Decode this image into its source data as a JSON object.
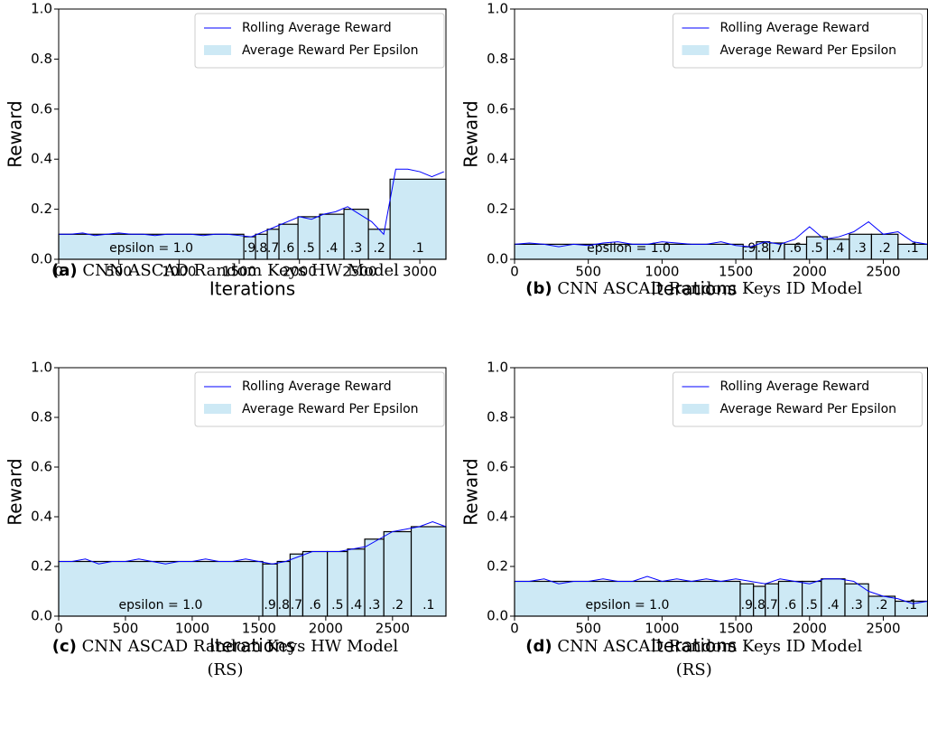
{
  "chart_data": [
    {
      "type": "line",
      "caption_label": "(a)",
      "caption": [
        "CNN ASCAD Random Keys HW Model"
      ],
      "xlabel": "Iterations",
      "ylabel": "Reward",
      "xlim": [
        0,
        3217
      ],
      "ylim": [
        0,
        1
      ],
      "xticks": [
        0,
        500,
        1000,
        1500,
        2000,
        2500,
        3000
      ],
      "yticks": [
        {
          "value": 0,
          "label": "0.0"
        },
        0.2,
        0.4,
        0.6,
        0.8,
        {
          "value": 1,
          "label": "1.0"
        }
      ],
      "series": [
        {
          "name": "Rolling Average Reward",
          "color": "#0000ff",
          "x": [
            0,
            100,
            200,
            300,
            400,
            500,
            600,
            700,
            800,
            900,
            1000,
            1100,
            1200,
            1300,
            1400,
            1500,
            1600,
            1700,
            1800,
            1900,
            2000,
            2100,
            2200,
            2300,
            2400,
            2500,
            2600,
            2700,
            2800,
            2900,
            3000,
            3100,
            3200
          ],
          "values": [
            0.1,
            0.1,
            0.105,
            0.095,
            0.1,
            0.105,
            0.1,
            0.1,
            0.095,
            0.1,
            0.1,
            0.1,
            0.095,
            0.1,
            0.1,
            0.095,
            0.09,
            0.11,
            0.13,
            0.15,
            0.17,
            0.16,
            0.18,
            0.19,
            0.21,
            0.18,
            0.15,
            0.1,
            0.36,
            0.36,
            0.35,
            0.33,
            0.35
          ]
        }
      ],
      "bars": {
        "name": "Average Reward Per Epsilon",
        "color": "#cde9f5",
        "bins": [
          0,
          1538,
          1635,
          1733,
          1830,
          1988,
          2168,
          2370,
          2573,
          2753,
          3217
        ],
        "values": [
          0.1,
          0.09,
          0.1,
          0.12,
          0.14,
          0.17,
          0.18,
          0.2,
          0.12,
          0.32
        ],
        "labels": [
          "epsilon = 1.0",
          ".9",
          ".8",
          ".7",
          ".6",
          ".5",
          ".4",
          ".3",
          ".2",
          ".1"
        ]
      }
    },
    {
      "type": "line",
      "caption_label": "(b)",
      "caption": [
        "CNN ASCAD Random Keys ID Model"
      ],
      "xlabel": "Iterations",
      "ylabel": "Reward",
      "xlim": [
        0,
        2800
      ],
      "ylim": [
        0,
        1
      ],
      "xticks": [
        0,
        500,
        1000,
        1500,
        2000,
        2500
      ],
      "yticks": [
        {
          "value": 0,
          "label": "0.0"
        },
        0.2,
        0.4,
        0.6,
        0.8,
        {
          "value": 1,
          "label": "1.0"
        }
      ],
      "series": [
        {
          "name": "Rolling Average Reward",
          "color": "#0000ff",
          "x": [
            0,
            100,
            200,
            300,
            400,
            500,
            600,
            700,
            800,
            900,
            1000,
            1100,
            1200,
            1300,
            1400,
            1500,
            1600,
            1700,
            1800,
            1900,
            2000,
            2100,
            2200,
            2300,
            2400,
            2500,
            2600,
            2700,
            2800
          ],
          "values": [
            0.06,
            0.065,
            0.06,
            0.05,
            0.06,
            0.055,
            0.065,
            0.07,
            0.06,
            0.06,
            0.07,
            0.065,
            0.06,
            0.06,
            0.07,
            0.055,
            0.05,
            0.07,
            0.06,
            0.08,
            0.13,
            0.08,
            0.09,
            0.11,
            0.15,
            0.1,
            0.11,
            0.07,
            0.06
          ]
        }
      ],
      "bars": {
        "name": "Average Reward Per Epsilon",
        "color": "#cde9f5",
        "bins": [
          0,
          1550,
          1640,
          1730,
          1830,
          1980,
          2120,
          2270,
          2420,
          2600,
          2800
        ],
        "values": [
          0.06,
          0.05,
          0.07,
          0.065,
          0.06,
          0.09,
          0.08,
          0.1,
          0.1,
          0.06
        ],
        "labels": [
          "epsilon = 1.0",
          ".9",
          ".8",
          ".7",
          ".6",
          ".5",
          ".4",
          ".3",
          ".2",
          ".1"
        ]
      }
    },
    {
      "type": "line",
      "caption_label": "(c)",
      "caption": [
        "CNN ASCAD Random Keys HW Model",
        "(RS)"
      ],
      "xlabel": "Iterations",
      "ylabel": "Reward",
      "xlim": [
        0,
        2900
      ],
      "ylim": [
        0,
        1
      ],
      "xticks": [
        0,
        500,
        1000,
        1500,
        2000,
        2500
      ],
      "yticks": [
        {
          "value": 0,
          "label": "0.0"
        },
        0.2,
        0.4,
        0.6,
        0.8,
        {
          "value": 1,
          "label": "1.0"
        }
      ],
      "series": [
        {
          "name": "Rolling Average Reward",
          "color": "#0000ff",
          "x": [
            0,
            100,
            200,
            300,
            400,
            500,
            600,
            700,
            800,
            900,
            1000,
            1100,
            1200,
            1300,
            1400,
            1500,
            1600,
            1700,
            1800,
            1900,
            2000,
            2100,
            2200,
            2300,
            2400,
            2500,
            2600,
            2700,
            2800,
            2900
          ],
          "values": [
            0.22,
            0.22,
            0.23,
            0.21,
            0.22,
            0.22,
            0.23,
            0.22,
            0.21,
            0.22,
            0.22,
            0.23,
            0.22,
            0.22,
            0.23,
            0.22,
            0.21,
            0.22,
            0.24,
            0.26,
            0.26,
            0.26,
            0.27,
            0.28,
            0.31,
            0.34,
            0.35,
            0.36,
            0.38,
            0.36
          ]
        }
      ],
      "bars": {
        "name": "Average Reward Per Epsilon",
        "color": "#cde9f5",
        "bins": [
          0,
          1528,
          1637,
          1733,
          1828,
          2012,
          2163,
          2292,
          2435,
          2640,
          2900
        ],
        "values": [
          0.22,
          0.21,
          0.22,
          0.25,
          0.26,
          0.26,
          0.27,
          0.31,
          0.34,
          0.36
        ],
        "labels": [
          "epsilon = 1.0",
          ".9",
          ".8",
          ".7",
          ".6",
          ".5",
          ".4",
          ".3",
          ".2",
          ".1"
        ]
      }
    },
    {
      "type": "line",
      "caption_label": "(d)",
      "caption": [
        "CNN ASCAD Random Keys ID Model",
        "(RS)"
      ],
      "xlabel": "Iterations",
      "ylabel": "Reward",
      "xlim": [
        0,
        2800
      ],
      "ylim": [
        0,
        1
      ],
      "xticks": [
        0,
        500,
        1000,
        1500,
        2000,
        2500
      ],
      "yticks": [
        {
          "value": 0,
          "label": "0.0"
        },
        0.2,
        0.4,
        0.6,
        0.8,
        {
          "value": 1,
          "label": "1.0"
        }
      ],
      "series": [
        {
          "name": "Rolling Average Reward",
          "color": "#0000ff",
          "x": [
            0,
            100,
            200,
            300,
            400,
            500,
            600,
            700,
            800,
            900,
            1000,
            1100,
            1200,
            1300,
            1400,
            1500,
            1600,
            1700,
            1800,
            1900,
            2000,
            2100,
            2200,
            2300,
            2400,
            2500,
            2600,
            2700,
            2800
          ],
          "values": [
            0.14,
            0.14,
            0.15,
            0.13,
            0.14,
            0.14,
            0.15,
            0.14,
            0.14,
            0.16,
            0.14,
            0.15,
            0.14,
            0.15,
            0.14,
            0.15,
            0.14,
            0.13,
            0.15,
            0.14,
            0.13,
            0.15,
            0.15,
            0.14,
            0.1,
            0.08,
            0.07,
            0.05,
            0.06
          ]
        }
      ],
      "bars": {
        "name": "Average Reward Per Epsilon",
        "color": "#cde9f5",
        "bins": [
          0,
          1530,
          1620,
          1700,
          1790,
          1950,
          2080,
          2240,
          2400,
          2580,
          2800
        ],
        "values": [
          0.14,
          0.13,
          0.12,
          0.13,
          0.14,
          0.14,
          0.15,
          0.13,
          0.08,
          0.06
        ],
        "labels": [
          "epsilon = 1.0",
          ".9",
          ".8",
          ".7",
          ".6",
          ".5",
          ".4",
          ".3",
          ".2",
          ".1"
        ]
      }
    }
  ]
}
